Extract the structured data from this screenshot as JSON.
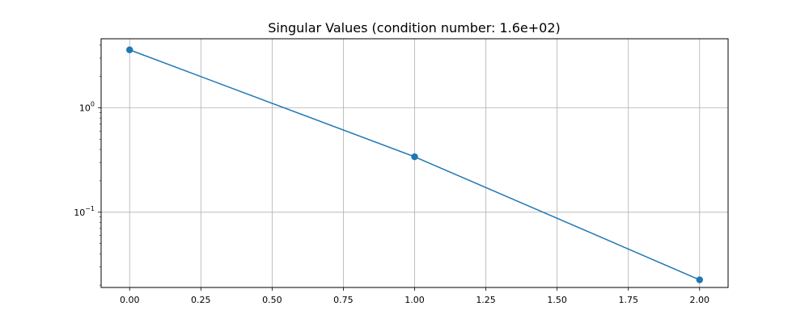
{
  "chart_data": {
    "type": "line",
    "title": "Singular Values (condition number: 1.6e+02)",
    "xlabel": "",
    "ylabel": "",
    "y_scale": "log",
    "grid": true,
    "xlim": [
      -0.1,
      2.1
    ],
    "ylim": [
      0.019,
      4.6
    ],
    "x_ticks": [
      0,
      0.25,
      0.5,
      0.75,
      1.0,
      1.25,
      1.5,
      1.75,
      2.0
    ],
    "x_tick_labels": [
      "0.00",
      "0.25",
      "0.50",
      "0.75",
      "1.00",
      "1.25",
      "1.50",
      "1.75",
      "2.00"
    ],
    "y_major_ticks": [
      0.1,
      1
    ],
    "y_tick_labels": [
      {
        "base": "10",
        "exp": "−1"
      },
      {
        "base": "10",
        "exp": "0"
      }
    ],
    "y_minor_ticks": [
      0.02,
      0.03,
      0.04,
      0.05,
      0.06,
      0.07,
      0.08,
      0.09,
      0.2,
      0.3,
      0.4,
      0.5,
      0.6,
      0.7,
      0.8,
      0.9,
      2,
      3,
      4
    ],
    "series": [
      {
        "x": [
          0,
          1,
          2
        ],
        "values": [
          3.6,
          0.34,
          0.0225
        ],
        "color": "#1f77b4",
        "marker": "circle"
      }
    ],
    "colors": {
      "line": "#1f77b4",
      "grid": "#b0b0b0",
      "axis": "#000000"
    }
  }
}
